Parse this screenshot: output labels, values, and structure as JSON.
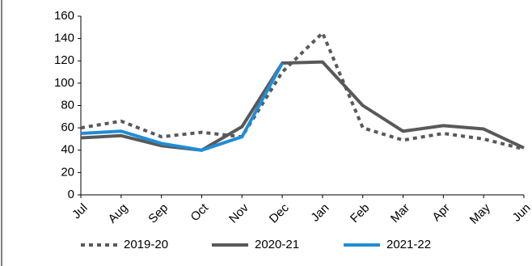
{
  "chart_data": {
    "type": "line",
    "categories": [
      "Jul",
      "Aug",
      "Sep",
      "Oct",
      "Nov",
      "Dec",
      "Jan",
      "Feb",
      "Mar",
      "Apr",
      "May",
      "Jun"
    ],
    "series": [
      {
        "name": "2019-20",
        "color": "#595959",
        "dash": "dotted",
        "values": [
          60,
          66,
          52,
          56,
          52,
          110,
          145,
          60,
          49,
          55,
          50,
          41
        ]
      },
      {
        "name": "2020-21",
        "color": "#595959",
        "dash": "solid",
        "values": [
          51,
          53,
          44,
          40,
          61,
          118,
          119,
          80,
          57,
          62,
          59,
          42
        ]
      },
      {
        "name": "2021-22",
        "color": "#1f8dd6",
        "dash": "solid",
        "values": [
          55,
          57,
          46,
          40,
          52,
          118,
          null,
          null,
          null,
          null,
          null,
          null
        ]
      }
    ],
    "ylim": [
      0,
      160
    ],
    "yticks": [
      0,
      20,
      40,
      60,
      80,
      100,
      120,
      140,
      160
    ],
    "grid": false
  }
}
